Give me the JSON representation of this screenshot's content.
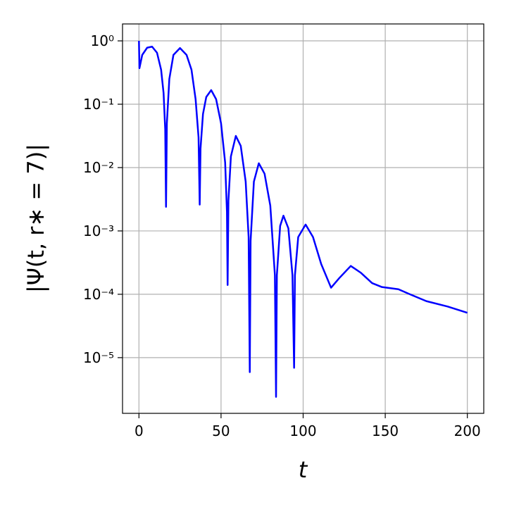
{
  "chart_data": {
    "type": "line",
    "xlabel": "t",
    "ylabel": "|Ψ(t, r∗ = 7)|",
    "yscale": "log",
    "grid": true,
    "xlim": [
      -10,
      210
    ],
    "ylim": [
      1.32e-06,
      1.85
    ],
    "xticks": [
      0,
      50,
      100,
      150,
      200
    ],
    "yticks": [
      {
        "value": 1,
        "label": "10⁰"
      },
      {
        "value": 0.1,
        "label": "10⁻¹"
      },
      {
        "value": 0.01,
        "label": "10⁻²"
      },
      {
        "value": 0.001,
        "label": "10⁻³"
      },
      {
        "value": 0.0001,
        "label": "10⁻⁴"
      },
      {
        "value": 1e-05,
        "label": "10⁻⁵"
      }
    ],
    "x": [
      0,
      0.3,
      2,
      5,
      8,
      11,
      13.5,
      15,
      16,
      16.5,
      17,
      18.5,
      21,
      25,
      29,
      32,
      34.5,
      36.3,
      37,
      37.5,
      39,
      41,
      44,
      47,
      50,
      52.5,
      53.6,
      54,
      54.5,
      56,
      59,
      62,
      65,
      66.8,
      67.5,
      68,
      70,
      73,
      76.5,
      80,
      82.8,
      83.5,
      84,
      86,
      88,
      91,
      93.5,
      94.5,
      95,
      97,
      101.5,
      106,
      111,
      117,
      122,
      129,
      135,
      142,
      148,
      158,
      165,
      175,
      188,
      200
    ],
    "series": [
      {
        "color": "#0000ff",
        "values": [
          1.0,
          0.37,
          0.6,
          0.78,
          0.81,
          0.65,
          0.35,
          0.15,
          0.04,
          0.0024,
          0.05,
          0.25,
          0.6,
          0.77,
          0.6,
          0.35,
          0.12,
          0.03,
          0.0026,
          0.02,
          0.07,
          0.13,
          0.167,
          0.12,
          0.05,
          0.012,
          0.002,
          0.00014,
          0.003,
          0.015,
          0.0316,
          0.022,
          0.006,
          0.0008,
          5.9e-06,
          0.0007,
          0.006,
          0.0117,
          0.008,
          0.0025,
          0.0002,
          2.4e-06,
          0.0002,
          0.0012,
          0.00174,
          0.0011,
          0.0002,
          6.9e-06,
          0.0002,
          0.0008,
          0.00126,
          0.0008,
          0.0003,
          0.000127,
          0.00018,
          0.00028,
          0.00022,
          0.00015,
          0.00013,
          0.00012,
          0.0001,
          7.8e-05,
          6.4e-05,
          5.1e-05
        ]
      }
    ]
  }
}
